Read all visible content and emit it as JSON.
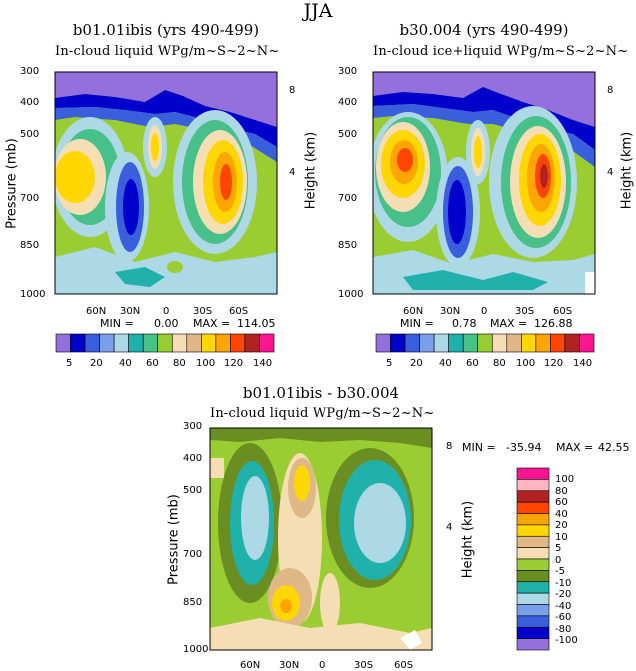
{
  "figure": {
    "title": "JJA"
  },
  "chart_data": [
    {
      "type": "heatmap",
      "panel": "left",
      "title": "b01.01ibis (yrs 490-499)",
      "subtitle": "In-cloud liquid WPg/m~S~2~N~",
      "ylabel": "Pressure (mb)",
      "ylabel_right": "Height (km)",
      "y_ticks": [
        "300",
        "400",
        "500",
        "700",
        "850",
        "1000"
      ],
      "y_right_ticks": [
        "8",
        "4"
      ],
      "x_ticks": [
        "60N",
        "30N",
        "0",
        "30S",
        "60S"
      ],
      "min_label": "MIN =",
      "min_value": "0.00",
      "max_label": "MAX =",
      "max_value": "114.05",
      "colorbar_labels": [
        "5",
        "20",
        "40",
        "60",
        "80",
        "100",
        "120",
        "140"
      ]
    },
    {
      "type": "heatmap",
      "panel": "right",
      "title": "b30.004 (yrs 490-499)",
      "subtitle": "In-cloud ice+liquid WPg/m~S~2~N~",
      "ylabel": "",
      "ylabel_right": "Height (km)",
      "y_ticks": [
        "300",
        "400",
        "500",
        "700",
        "850",
        "1000"
      ],
      "y_right_ticks": [
        "8",
        "4"
      ],
      "x_ticks": [
        "60N",
        "30N",
        "0",
        "30S",
        "60S"
      ],
      "min_label": "MIN =",
      "min_value": "0.78",
      "max_label": "MAX =",
      "max_value": "126.88",
      "colorbar_labels": [
        "5",
        "20",
        "40",
        "60",
        "80",
        "100",
        "120",
        "140"
      ]
    },
    {
      "type": "heatmap",
      "panel": "difference",
      "title": "b01.01ibis - b30.004",
      "subtitle": "In-cloud liquid WPg/m~S~2~N~",
      "ylabel": "Pressure (mb)",
      "ylabel_right": "Height (km)",
      "y_ticks": [
        "300",
        "400",
        "500",
        "700",
        "850",
        "1000"
      ],
      "y_right_ticks": [
        "8",
        "4"
      ],
      "x_ticks": [
        "60N",
        "30N",
        "0",
        "30S",
        "60S"
      ],
      "min_label": "MIN =",
      "min_value": "-35.94",
      "max_label": "MAX =",
      "max_value": "42.55",
      "colorbar_labels": [
        "100",
        "80",
        "60",
        "40",
        "20",
        "10",
        "5",
        "0",
        "-5",
        "-10",
        "-20",
        "-40",
        "-60",
        "-80",
        "-100"
      ]
    }
  ],
  "colors": {
    "abs_scale": [
      "#9370db",
      "#0000cd",
      "#3a5fdc",
      "#7b9ee8",
      "#add8e6",
      "#20b2aa",
      "#48c08a",
      "#9acd32",
      "#f5deb3",
      "#deb887",
      "#ffd700",
      "#ffa500",
      "#ff4500",
      "#b22222",
      "#ff1493"
    ],
    "diff_scale": [
      "#ff1493",
      "#ffb6c1",
      "#b22222",
      "#ff4500",
      "#ffa500",
      "#ffd700",
      "#deb887",
      "#f5deb3",
      "#9acd32",
      "#6b8e23",
      "#20b2aa",
      "#add8e6",
      "#7b9ee8",
      "#3a5fdc",
      "#0000cd",
      "#9370db"
    ]
  }
}
